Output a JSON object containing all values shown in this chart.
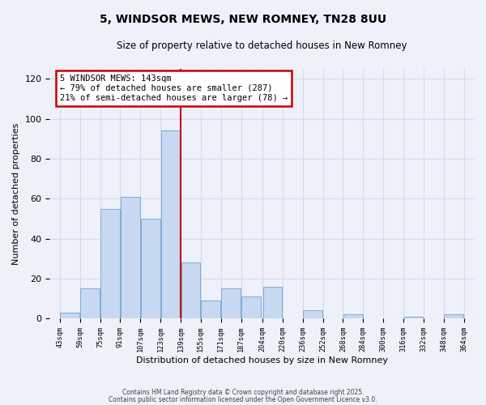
{
  "title": "5, WINDSOR MEWS, NEW ROMNEY, TN28 8UU",
  "subtitle": "Size of property relative to detached houses in New Romney",
  "xlabel": "Distribution of detached houses by size in New Romney",
  "ylabel": "Number of detached properties",
  "bar_color": "#c8d8f0",
  "bar_edge_color": "#7aadd4",
  "background_color": "#eef0fa",
  "grid_color": "#d8daea",
  "vline_x": 139,
  "vline_color": "#cc0000",
  "annotation_text": "5 WINDSOR MEWS: 143sqm\n← 79% of detached houses are smaller (287)\n21% of semi-detached houses are larger (78) →",
  "annotation_box_edge": "#cc0000",
  "bins": [
    43,
    59,
    75,
    91,
    107,
    123,
    139,
    155,
    171,
    187,
    204,
    220,
    236,
    252,
    268,
    284,
    300,
    316,
    332,
    348,
    364
  ],
  "counts": [
    3,
    15,
    55,
    61,
    50,
    94,
    28,
    9,
    15,
    11,
    16,
    0,
    4,
    0,
    2,
    0,
    0,
    1,
    0,
    2
  ],
  "tick_labels": [
    "43sqm",
    "59sqm",
    "75sqm",
    "91sqm",
    "107sqm",
    "123sqm",
    "139sqm",
    "155sqm",
    "171sqm",
    "187sqm",
    "204sqm",
    "220sqm",
    "236sqm",
    "252sqm",
    "268sqm",
    "284sqm",
    "300sqm",
    "316sqm",
    "332sqm",
    "348sqm",
    "364sqm"
  ],
  "ylim": [
    0,
    125
  ],
  "yticks": [
    0,
    20,
    40,
    60,
    80,
    100,
    120
  ],
  "footnote1": "Contains HM Land Registry data © Crown copyright and database right 2025.",
  "footnote2": "Contains public sector information licensed under the Open Government Licence v3.0."
}
